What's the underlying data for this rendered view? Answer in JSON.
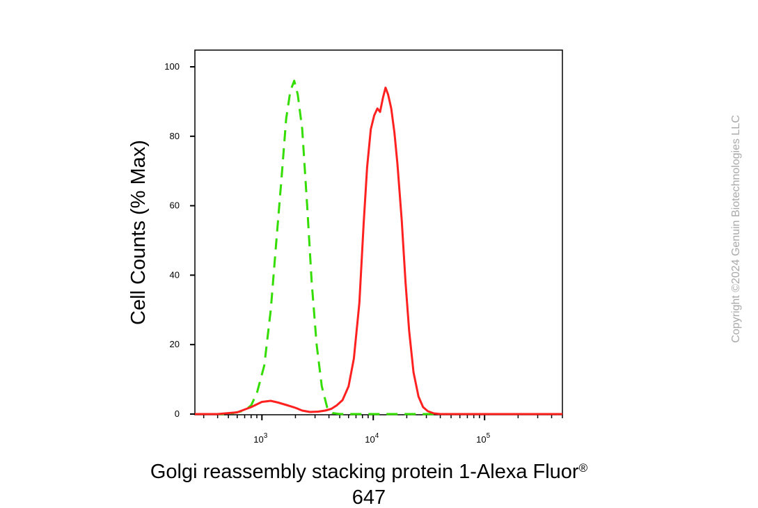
{
  "chart_data": {
    "type": "line",
    "title": "",
    "xlabel": "Golgi reassembly stacking protein 1-Alexa Fluor® 647",
    "xlabel_lines": [
      "Golgi reassembly stacking protein 1-Alexa Fluor",
      "®",
      "647"
    ],
    "ylabel": "Cell Counts (% Max)",
    "x_scale": "log",
    "xlim": [
      250,
      500000
    ],
    "ylim": [
      0,
      105
    ],
    "y_ticks": [
      0,
      20,
      40,
      60,
      80,
      100
    ],
    "y_tick_labels": [
      "0",
      "20",
      "40",
      "60",
      "80",
      "100"
    ],
    "x_tick_labels": [
      {
        "value": 1000,
        "base": "10",
        "exp": "3"
      },
      {
        "value": 10000,
        "base": "10",
        "exp": "4"
      },
      {
        "value": 100000,
        "base": "10",
        "exp": "5"
      }
    ],
    "grid": false,
    "legend": false,
    "series": [
      {
        "style": "dashed",
        "color": "#33dd00",
        "points": [
          [
            250,
            0
          ],
          [
            500,
            0
          ],
          [
            700,
            1
          ],
          [
            800,
            2.5
          ],
          [
            900,
            6
          ],
          [
            1050,
            14
          ],
          [
            1200,
            30
          ],
          [
            1350,
            50
          ],
          [
            1500,
            68
          ],
          [
            1650,
            85
          ],
          [
            1800,
            93
          ],
          [
            1950,
            96
          ],
          [
            2100,
            92
          ],
          [
            2300,
            82
          ],
          [
            2550,
            60
          ],
          [
            2800,
            38
          ],
          [
            3100,
            20
          ],
          [
            3450,
            8
          ],
          [
            3850,
            2
          ],
          [
            4300,
            0.3
          ],
          [
            5000,
            0
          ],
          [
            500000,
            0
          ]
        ]
      },
      {
        "style": "solid",
        "color": "#ff2020",
        "points": [
          [
            250,
            0
          ],
          [
            400,
            0
          ],
          [
            600,
            0.5
          ],
          [
            800,
            2
          ],
          [
            1000,
            3.5
          ],
          [
            1200,
            3.8
          ],
          [
            1400,
            3.3
          ],
          [
            1700,
            2.5
          ],
          [
            2000,
            1.8
          ],
          [
            2300,
            1
          ],
          [
            2700,
            0.6
          ],
          [
            3200,
            0.7
          ],
          [
            3700,
            1
          ],
          [
            4200,
            1.5
          ],
          [
            4700,
            2.5
          ],
          [
            5300,
            4
          ],
          [
            6000,
            8
          ],
          [
            6700,
            16
          ],
          [
            7500,
            32
          ],
          [
            8200,
            55
          ],
          [
            8800,
            71
          ],
          [
            9500,
            82
          ],
          [
            10200,
            86
          ],
          [
            10900,
            88
          ],
          [
            11500,
            87
          ],
          [
            12200,
            91
          ],
          [
            12900,
            94
          ],
          [
            13600,
            92
          ],
          [
            14500,
            88
          ],
          [
            15500,
            81
          ],
          [
            16500,
            72
          ],
          [
            18000,
            56
          ],
          [
            19500,
            38
          ],
          [
            21000,
            24
          ],
          [
            23000,
            12
          ],
          [
            25500,
            5
          ],
          [
            28000,
            2
          ],
          [
            31000,
            0.8
          ],
          [
            35000,
            0.2
          ],
          [
            40000,
            0
          ],
          [
            500000,
            0
          ]
        ]
      }
    ]
  },
  "watermark": {
    "text": "Copyright ©2024 Genuin Biotechnologies LLC",
    "color": "#a9a9a9"
  }
}
